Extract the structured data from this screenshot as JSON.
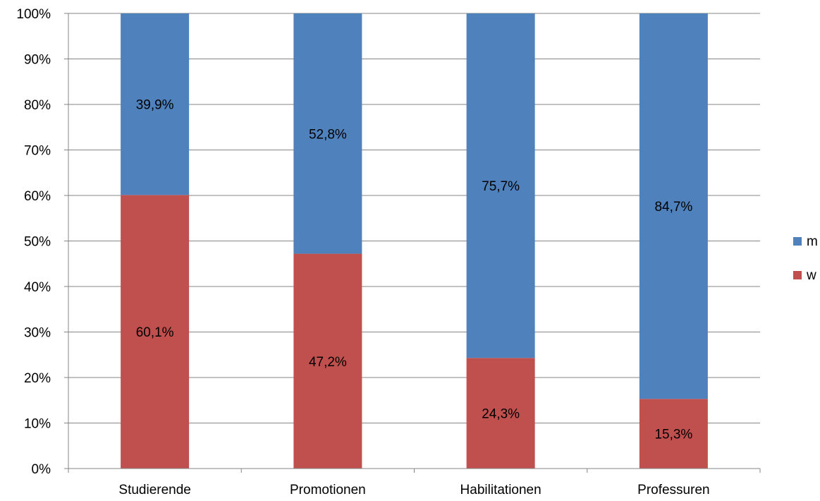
{
  "chart_data": {
    "type": "bar",
    "stacked": true,
    "percent_stacked": true,
    "title": "",
    "xlabel": "",
    "ylabel": "",
    "categories": [
      "Studierende",
      "Promotionen",
      "Habilitationen",
      "Professuren"
    ],
    "series": [
      {
        "name": "w",
        "color": "#c0504d",
        "values": [
          60.1,
          47.2,
          24.3,
          15.3
        ],
        "labels": [
          "60,1%",
          "47,2%",
          "24,3%",
          "15,3%"
        ]
      },
      {
        "name": "m",
        "color": "#4f81bd",
        "values": [
          39.9,
          52.8,
          75.7,
          84.7
        ],
        "labels": [
          "39,9%",
          "52,8%",
          "75,7%",
          "84,7%"
        ]
      }
    ],
    "ylim": [
      0,
      100
    ],
    "yticks": [
      "0%",
      "10%",
      "20%",
      "30%",
      "40%",
      "50%",
      "60%",
      "70%",
      "80%",
      "90%",
      "100%"
    ],
    "grid": true,
    "legend": {
      "position": "right",
      "entries": [
        {
          "name": "m",
          "color": "#4f81bd"
        },
        {
          "name": "w",
          "color": "#c0504d"
        }
      ]
    }
  }
}
